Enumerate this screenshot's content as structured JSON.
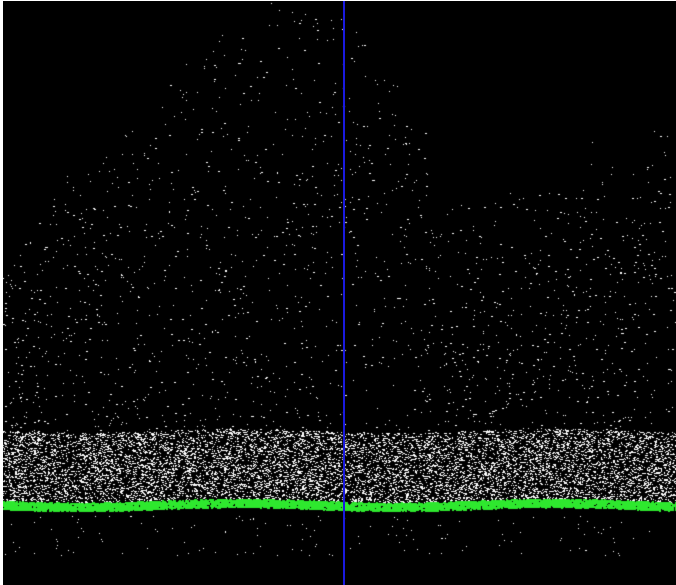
{
  "viewer": {
    "background_color": "#000000",
    "point_color": "#ffffff",
    "ground_color": "#2ee82e",
    "cursor_line_color": "#1a1adf"
  },
  "scene": {
    "content": "point-cloud-side-profile",
    "layers": [
      "vegetation-points",
      "ground-points",
      "sparse-below-ground-points"
    ]
  }
}
